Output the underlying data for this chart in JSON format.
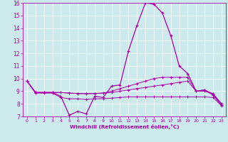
{
  "xlabel": "Windchill (Refroidissement éolien,°C)",
  "bg_color": "#cce9ec",
  "line_color": "#aa00aa",
  "x": [
    0,
    1,
    2,
    3,
    4,
    5,
    6,
    7,
    8,
    9,
    10,
    11,
    12,
    13,
    14,
    15,
    16,
    17,
    18,
    19,
    20,
    21,
    22,
    23
  ],
  "line1": [
    9.8,
    8.9,
    8.9,
    8.9,
    8.6,
    7.1,
    7.4,
    7.2,
    8.6,
    8.5,
    9.4,
    9.5,
    12.2,
    14.2,
    16.0,
    15.9,
    15.2,
    13.4,
    11.0,
    10.4,
    9.0,
    9.1,
    8.7,
    7.9
  ],
  "line2": [
    9.8,
    8.9,
    8.9,
    8.9,
    8.9,
    8.85,
    8.82,
    8.8,
    8.82,
    8.85,
    8.9,
    9.0,
    9.1,
    9.2,
    9.3,
    9.4,
    9.5,
    9.6,
    9.7,
    9.8,
    9.0,
    9.1,
    8.8,
    8.0
  ],
  "line3": [
    9.8,
    8.85,
    8.85,
    8.85,
    8.5,
    8.4,
    8.4,
    8.35,
    8.4,
    8.4,
    8.45,
    8.5,
    8.55,
    8.55,
    8.55,
    8.55,
    8.55,
    8.55,
    8.55,
    8.55,
    8.55,
    8.55,
    8.5,
    7.85
  ],
  "line4": [
    9.8,
    8.9,
    8.9,
    8.9,
    8.9,
    8.85,
    8.82,
    8.8,
    8.82,
    8.85,
    9.0,
    9.2,
    9.4,
    9.6,
    9.8,
    10.0,
    10.1,
    10.1,
    10.1,
    10.1,
    9.0,
    9.0,
    8.8,
    8.0
  ],
  "ylim": [
    7,
    16
  ],
  "xlim": [
    -0.5,
    23.5
  ],
  "yticks": [
    7,
    8,
    9,
    10,
    11,
    12,
    13,
    14,
    15,
    16
  ],
  "xticks": [
    0,
    1,
    2,
    3,
    4,
    5,
    6,
    7,
    8,
    9,
    10,
    11,
    12,
    13,
    14,
    15,
    16,
    17,
    18,
    19,
    20,
    21,
    22,
    23
  ],
  "figsize": [
    3.2,
    2.0
  ],
  "dpi": 100
}
